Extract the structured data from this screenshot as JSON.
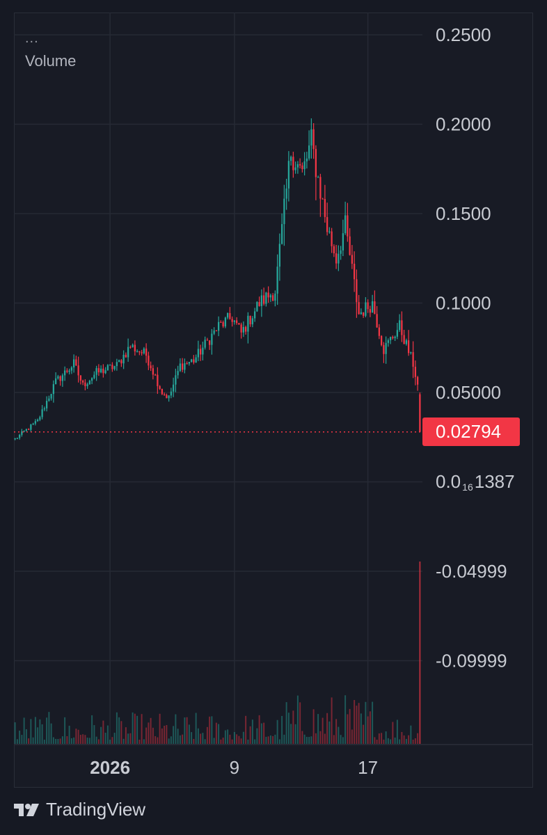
{
  "legend": {
    "menu_label": "...",
    "volume_label": "Volume"
  },
  "price_axis": {
    "ticks": [
      {
        "value": 0.25,
        "label": "0.2500"
      },
      {
        "value": 0.2,
        "label": "0.2000"
      },
      {
        "value": 0.15,
        "label": "0.1500"
      },
      {
        "value": 0.1,
        "label": "0.1000"
      },
      {
        "value": 0.05,
        "label": "0.05000"
      },
      {
        "value": -0.04999,
        "label": "-0.04999"
      },
      {
        "value": -0.09999,
        "label": "-0.09999"
      }
    ],
    "zero_label": {
      "prefix": "0.0",
      "subscript": "16",
      "digits": "1387"
    }
  },
  "current_price": {
    "value": 0.02794,
    "label": "0.02794",
    "color": "#f23645"
  },
  "time_axis": {
    "labels": [
      {
        "label": "2026",
        "bold": true,
        "bar": 42
      },
      {
        "label": "9",
        "bold": false,
        "bar": 97
      },
      {
        "label": "17",
        "bold": false,
        "bar": 156
      }
    ]
  },
  "colors": {
    "up": "#26a69a",
    "down": "#f23645",
    "grid": "#262a35",
    "background": "#181b25"
  },
  "brand": {
    "name": "TradingView",
    "logo_icon": "tradingview-logo-icon"
  },
  "chart_data": {
    "type": "candlestick",
    "series": [
      {
        "name": "Price",
        "type": "candlestick"
      },
      {
        "name": "Volume",
        "type": "bar"
      }
    ],
    "ylim": [
      -0.125,
      0.26
    ],
    "bar_count": 180,
    "price_keypoints": [
      {
        "bar": 0,
        "price": 0.024
      },
      {
        "bar": 10,
        "price": 0.034
      },
      {
        "bar": 18,
        "price": 0.056
      },
      {
        "bar": 26,
        "price": 0.066
      },
      {
        "bar": 30,
        "price": 0.054
      },
      {
        "bar": 36,
        "price": 0.061
      },
      {
        "bar": 45,
        "price": 0.065
      },
      {
        "bar": 51,
        "price": 0.076
      },
      {
        "bar": 58,
        "price": 0.071
      },
      {
        "bar": 65,
        "price": 0.05
      },
      {
        "bar": 68,
        "price": 0.047
      },
      {
        "bar": 73,
        "price": 0.065
      },
      {
        "bar": 79,
        "price": 0.068
      },
      {
        "bar": 90,
        "price": 0.087
      },
      {
        "bar": 96,
        "price": 0.092
      },
      {
        "bar": 100,
        "price": 0.083
      },
      {
        "bar": 108,
        "price": 0.1
      },
      {
        "bar": 115,
        "price": 0.107
      },
      {
        "bar": 122,
        "price": 0.185
      },
      {
        "bar": 127,
        "price": 0.172
      },
      {
        "bar": 131,
        "price": 0.19
      },
      {
        "bar": 138,
        "price": 0.142
      },
      {
        "bar": 142,
        "price": 0.125
      },
      {
        "bar": 146,
        "price": 0.143
      },
      {
        "bar": 152,
        "price": 0.094
      },
      {
        "bar": 158,
        "price": 0.1
      },
      {
        "bar": 163,
        "price": 0.074
      },
      {
        "bar": 170,
        "price": 0.087
      },
      {
        "bar": 176,
        "price": 0.066
      },
      {
        "bar": 179,
        "price": 0.048
      }
    ],
    "last_candle": {
      "open": 0.049,
      "high": 0.05,
      "low": 0.02794,
      "close": 0.02794
    },
    "volume_note": "small bars along the bottom with a spike on the final bar"
  }
}
